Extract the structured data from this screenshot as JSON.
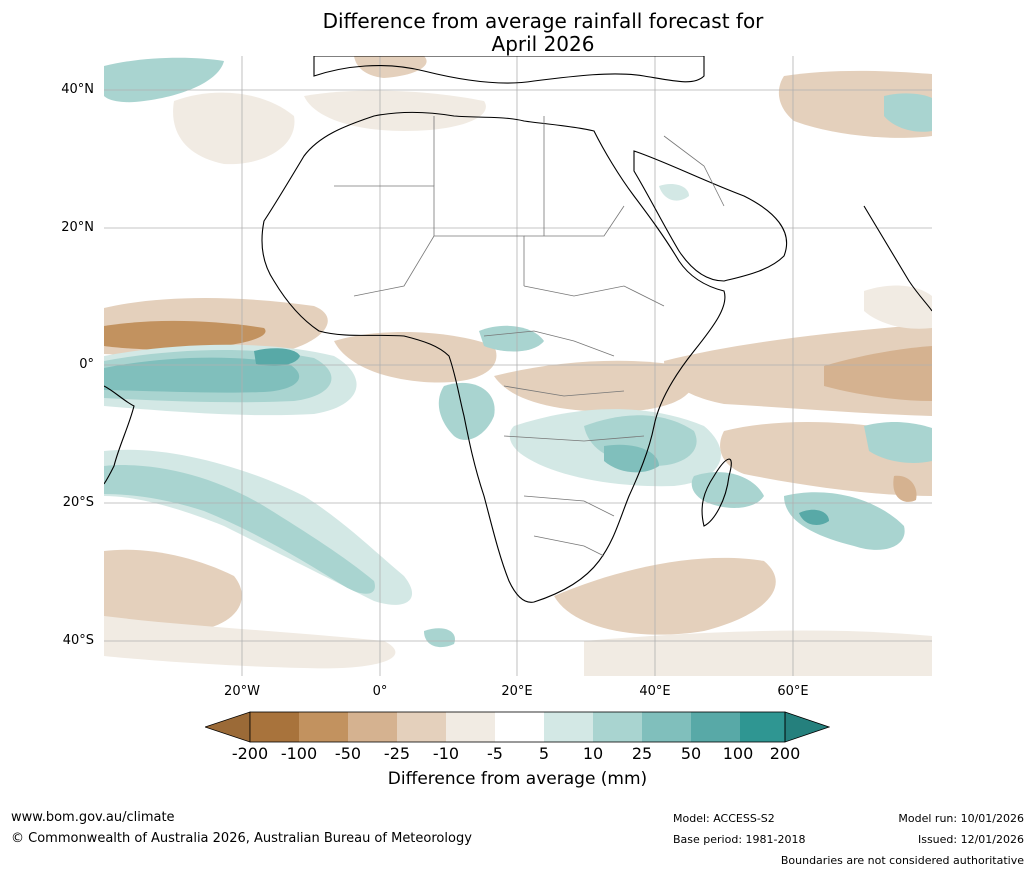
{
  "title": {
    "line1": "Difference from average rainfall forecast for",
    "line2": "April 2026"
  },
  "map": {
    "lat_labels": [
      "40°N",
      "20°N",
      "0°",
      "20°S",
      "40°S"
    ],
    "lon_labels": [
      "20°W",
      "0°",
      "20°E",
      "40°E",
      "60°E"
    ]
  },
  "colorbar": {
    "title": "Difference from average (mm)",
    "labels": [
      "-200",
      "-100",
      "-50",
      "-25",
      "-10",
      "-5",
      "5",
      "10",
      "25",
      "50",
      "100",
      "200"
    ],
    "colors": [
      "#a8733c",
      "#c2925f",
      "#d5b290",
      "#e4d0bc",
      "#f1ebe3",
      "#ffffff",
      "#d3e8e5",
      "#a9d4d0",
      "#80bfbc",
      "#58a9a7",
      "#2f9692"
    ],
    "under_color": "#9b6a37",
    "over_color": "#25807d"
  },
  "footer": {
    "website": "www.bom.gov.au/climate",
    "copyright": "© Commonwealth of Australia 2026, Australian Bureau of Meteorology",
    "model": "Model: ACCESS-S2",
    "base_period": "Base period: 1981-2018",
    "model_run": "Model run: 10/01/2026",
    "issued": "Issued: 12/01/2026",
    "boundaries": "Boundaries are not considered authoritative"
  }
}
